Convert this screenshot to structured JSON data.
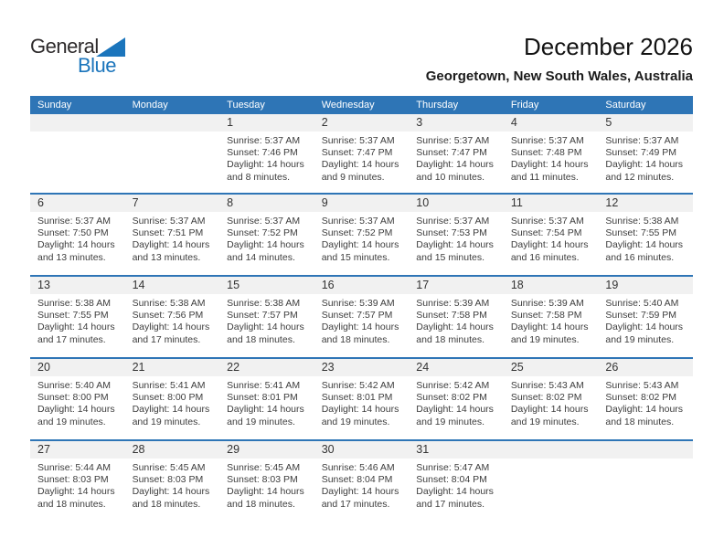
{
  "logo": {
    "line1": "General",
    "line2": "Blue",
    "triangle_icon": "blue-triangle"
  },
  "title": "December 2026",
  "subtitle": "Georgetown, New South Wales, Australia",
  "weekdays": [
    "Sunday",
    "Monday",
    "Tuesday",
    "Wednesday",
    "Thursday",
    "Friday",
    "Saturday"
  ],
  "colors": {
    "header_bg": "#2e75b6",
    "row_line": "#2e75b6",
    "band_bg": "#f1f1f1",
    "accent_blue": "#1b75bc"
  },
  "weeks": [
    [
      {
        "day": "",
        "lines": []
      },
      {
        "day": "",
        "lines": []
      },
      {
        "day": "1",
        "lines": [
          "Sunrise: 5:37 AM",
          "Sunset: 7:46 PM",
          "Daylight: 14 hours",
          "and 8 minutes."
        ]
      },
      {
        "day": "2",
        "lines": [
          "Sunrise: 5:37 AM",
          "Sunset: 7:47 PM",
          "Daylight: 14 hours",
          "and 9 minutes."
        ]
      },
      {
        "day": "3",
        "lines": [
          "Sunrise: 5:37 AM",
          "Sunset: 7:47 PM",
          "Daylight: 14 hours",
          "and 10 minutes."
        ]
      },
      {
        "day": "4",
        "lines": [
          "Sunrise: 5:37 AM",
          "Sunset: 7:48 PM",
          "Daylight: 14 hours",
          "and 11 minutes."
        ]
      },
      {
        "day": "5",
        "lines": [
          "Sunrise: 5:37 AM",
          "Sunset: 7:49 PM",
          "Daylight: 14 hours",
          "and 12 minutes."
        ]
      }
    ],
    [
      {
        "day": "6",
        "lines": [
          "Sunrise: 5:37 AM",
          "Sunset: 7:50 PM",
          "Daylight: 14 hours",
          "and 13 minutes."
        ]
      },
      {
        "day": "7",
        "lines": [
          "Sunrise: 5:37 AM",
          "Sunset: 7:51 PM",
          "Daylight: 14 hours",
          "and 13 minutes."
        ]
      },
      {
        "day": "8",
        "lines": [
          "Sunrise: 5:37 AM",
          "Sunset: 7:52 PM",
          "Daylight: 14 hours",
          "and 14 minutes."
        ]
      },
      {
        "day": "9",
        "lines": [
          "Sunrise: 5:37 AM",
          "Sunset: 7:52 PM",
          "Daylight: 14 hours",
          "and 15 minutes."
        ]
      },
      {
        "day": "10",
        "lines": [
          "Sunrise: 5:37 AM",
          "Sunset: 7:53 PM",
          "Daylight: 14 hours",
          "and 15 minutes."
        ]
      },
      {
        "day": "11",
        "lines": [
          "Sunrise: 5:37 AM",
          "Sunset: 7:54 PM",
          "Daylight: 14 hours",
          "and 16 minutes."
        ]
      },
      {
        "day": "12",
        "lines": [
          "Sunrise: 5:38 AM",
          "Sunset: 7:55 PM",
          "Daylight: 14 hours",
          "and 16 minutes."
        ]
      }
    ],
    [
      {
        "day": "13",
        "lines": [
          "Sunrise: 5:38 AM",
          "Sunset: 7:55 PM",
          "Daylight: 14 hours",
          "and 17 minutes."
        ]
      },
      {
        "day": "14",
        "lines": [
          "Sunrise: 5:38 AM",
          "Sunset: 7:56 PM",
          "Daylight: 14 hours",
          "and 17 minutes."
        ]
      },
      {
        "day": "15",
        "lines": [
          "Sunrise: 5:38 AM",
          "Sunset: 7:57 PM",
          "Daylight: 14 hours",
          "and 18 minutes."
        ]
      },
      {
        "day": "16",
        "lines": [
          "Sunrise: 5:39 AM",
          "Sunset: 7:57 PM",
          "Daylight: 14 hours",
          "and 18 minutes."
        ]
      },
      {
        "day": "17",
        "lines": [
          "Sunrise: 5:39 AM",
          "Sunset: 7:58 PM",
          "Daylight: 14 hours",
          "and 18 minutes."
        ]
      },
      {
        "day": "18",
        "lines": [
          "Sunrise: 5:39 AM",
          "Sunset: 7:58 PM",
          "Daylight: 14 hours",
          "and 19 minutes."
        ]
      },
      {
        "day": "19",
        "lines": [
          "Sunrise: 5:40 AM",
          "Sunset: 7:59 PM",
          "Daylight: 14 hours",
          "and 19 minutes."
        ]
      }
    ],
    [
      {
        "day": "20",
        "lines": [
          "Sunrise: 5:40 AM",
          "Sunset: 8:00 PM",
          "Daylight: 14 hours",
          "and 19 minutes."
        ]
      },
      {
        "day": "21",
        "lines": [
          "Sunrise: 5:41 AM",
          "Sunset: 8:00 PM",
          "Daylight: 14 hours",
          "and 19 minutes."
        ]
      },
      {
        "day": "22",
        "lines": [
          "Sunrise: 5:41 AM",
          "Sunset: 8:01 PM",
          "Daylight: 14 hours",
          "and 19 minutes."
        ]
      },
      {
        "day": "23",
        "lines": [
          "Sunrise: 5:42 AM",
          "Sunset: 8:01 PM",
          "Daylight: 14 hours",
          "and 19 minutes."
        ]
      },
      {
        "day": "24",
        "lines": [
          "Sunrise: 5:42 AM",
          "Sunset: 8:02 PM",
          "Daylight: 14 hours",
          "and 19 minutes."
        ]
      },
      {
        "day": "25",
        "lines": [
          "Sunrise: 5:43 AM",
          "Sunset: 8:02 PM",
          "Daylight: 14 hours",
          "and 19 minutes."
        ]
      },
      {
        "day": "26",
        "lines": [
          "Sunrise: 5:43 AM",
          "Sunset: 8:02 PM",
          "Daylight: 14 hours",
          "and 18 minutes."
        ]
      }
    ],
    [
      {
        "day": "27",
        "lines": [
          "Sunrise: 5:44 AM",
          "Sunset: 8:03 PM",
          "Daylight: 14 hours",
          "and 18 minutes."
        ]
      },
      {
        "day": "28",
        "lines": [
          "Sunrise: 5:45 AM",
          "Sunset: 8:03 PM",
          "Daylight: 14 hours",
          "and 18 minutes."
        ]
      },
      {
        "day": "29",
        "lines": [
          "Sunrise: 5:45 AM",
          "Sunset: 8:03 PM",
          "Daylight: 14 hours",
          "and 18 minutes."
        ]
      },
      {
        "day": "30",
        "lines": [
          "Sunrise: 5:46 AM",
          "Sunset: 8:04 PM",
          "Daylight: 14 hours",
          "and 17 minutes."
        ]
      },
      {
        "day": "31",
        "lines": [
          "Sunrise: 5:47 AM",
          "Sunset: 8:04 PM",
          "Daylight: 14 hours",
          "and 17 minutes."
        ]
      },
      {
        "day": "",
        "lines": []
      },
      {
        "day": "",
        "lines": []
      }
    ]
  ]
}
